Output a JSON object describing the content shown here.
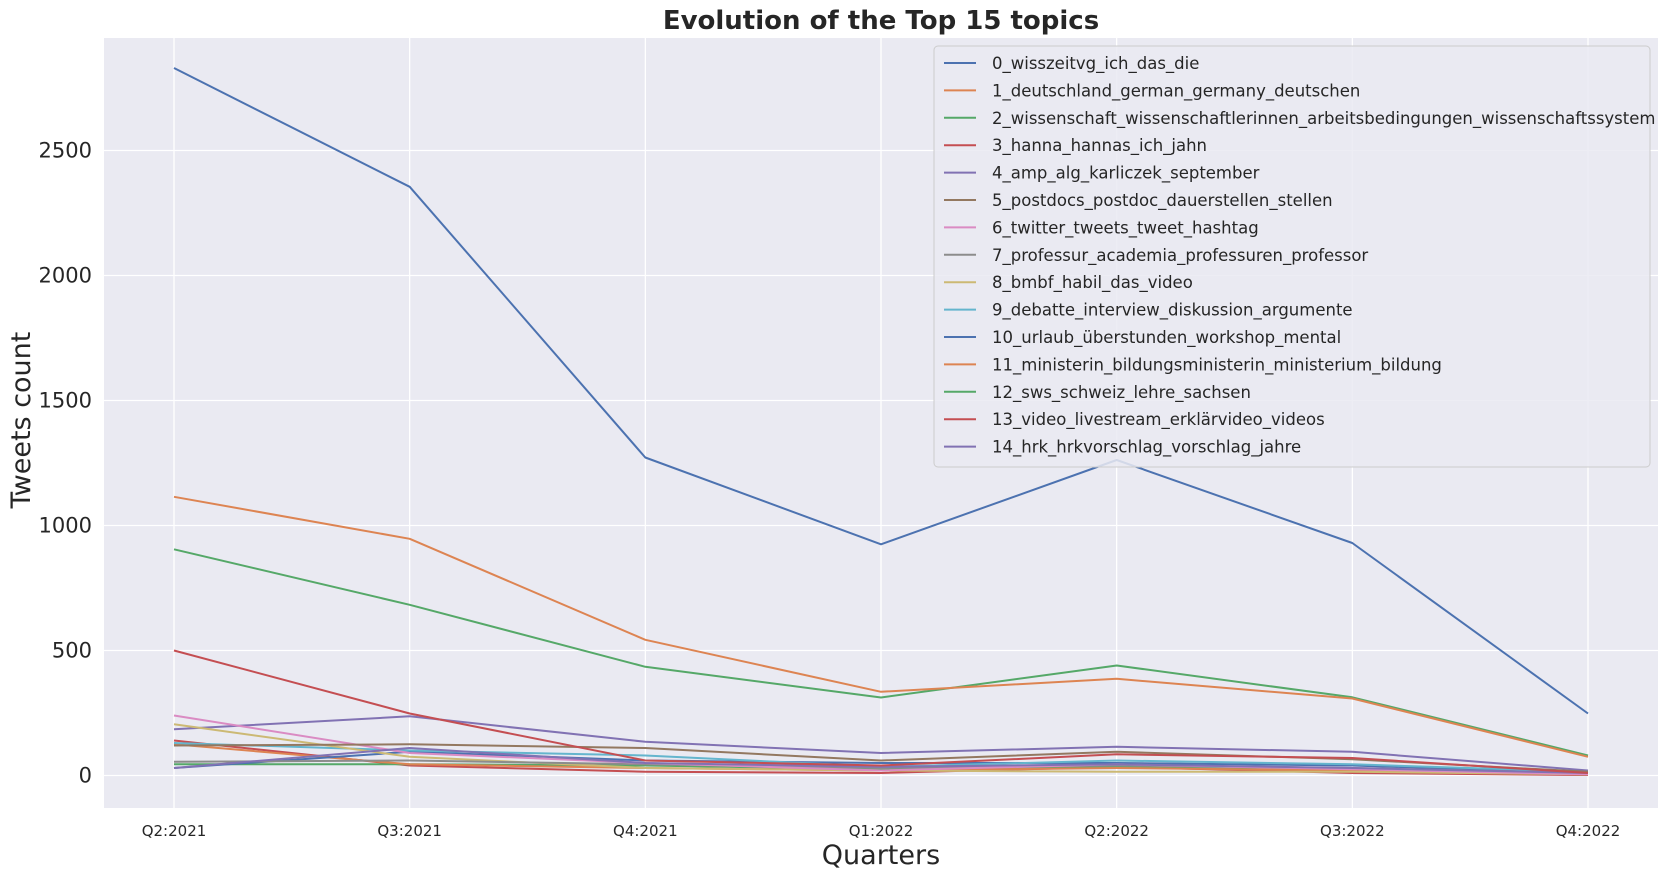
{
  "chart_data": {
    "type": "line",
    "title": "Evolution of the Top 15 topics",
    "xlabel": "Quarters",
    "ylabel": "Tweets count",
    "categories": [
      "Q2:2021",
      "Q3:2021",
      "Q4:2021",
      "Q1:2022",
      "Q2:2022",
      "Q3:2022",
      "Q4:2022"
    ],
    "ylim": [
      -130,
      2950
    ],
    "yticks": [
      0,
      500,
      1000,
      1500,
      2000,
      2500
    ],
    "grid": true,
    "legend_position": "top-right",
    "series": [
      {
        "name": "0_wisszeitvg_ich_das_die",
        "color": "#4c72b0",
        "values": [
          2830,
          2355,
          1272,
          925,
          1262,
          930,
          248
        ]
      },
      {
        "name": "1_deutschland_german_germany_deutschen",
        "color": "#dd8452",
        "values": [
          1115,
          947,
          543,
          335,
          387,
          308,
          75
        ]
      },
      {
        "name": "2_wissenschaft_wissenschaftlerinnen_arbeitsbedingungen_wissenschaftssystem",
        "color": "#55a868",
        "values": [
          905,
          683,
          435,
          312,
          440,
          313,
          80
        ]
      },
      {
        "name": "3_hanna_hannas_ich_jahn",
        "color": "#c44e52",
        "values": [
          500,
          248,
          60,
          40,
          85,
          70,
          10
        ]
      },
      {
        "name": "4_amp_alg_karliczek_september",
        "color": "#8172b3",
        "values": [
          30,
          110,
          50,
          35,
          45,
          30,
          10
        ]
      },
      {
        "name": "5_postdocs_postdoc_dauerstellen_stellen",
        "color": "#937860",
        "values": [
          120,
          125,
          110,
          60,
          95,
          65,
          15
        ]
      },
      {
        "name": "6_twitter_tweets_tweet_hashtag",
        "color": "#da8bc3",
        "values": [
          240,
          90,
          50,
          20,
          45,
          25,
          5
        ]
      },
      {
        "name": "7_professur_academia_professuren_professor",
        "color": "#8c8c8c",
        "values": [
          55,
          60,
          45,
          30,
          40,
          30,
          10
        ]
      },
      {
        "name": "8_bmbf_habil_das_video",
        "color": "#ccb974",
        "values": [
          205,
          75,
          30,
          20,
          15,
          15,
          5
        ]
      },
      {
        "name": "9_debatte_interview_diskussion_argumente",
        "color": "#64b5cd",
        "values": [
          130,
          100,
          80,
          35,
          60,
          45,
          15
        ]
      },
      {
        "name": "10_urlaub_überstunden_workshop_mental",
        "color": "#4c72b0",
        "values": [
          30,
          95,
          60,
          50,
          50,
          40,
          10
        ]
      },
      {
        "name": "11_ministerin_bildungsministerin_ministerium_bildung",
        "color": "#dd8452",
        "values": [
          125,
          45,
          30,
          20,
          30,
          20,
          5
        ]
      },
      {
        "name": "12_sws_schweiz_lehre_sachsen",
        "color": "#55a868",
        "values": [
          45,
          45,
          40,
          25,
          35,
          20,
          5
        ]
      },
      {
        "name": "13_video_livestream_erklärvideo_videos",
        "color": "#c44e52",
        "values": [
          140,
          40,
          15,
          10,
          35,
          10,
          2
        ]
      },
      {
        "name": "14_hrk_hrkvorschlag_vorschlag_jahre",
        "color": "#8172b3",
        "values": [
          185,
          237,
          135,
          90,
          115,
          95,
          20
        ]
      }
    ]
  }
}
